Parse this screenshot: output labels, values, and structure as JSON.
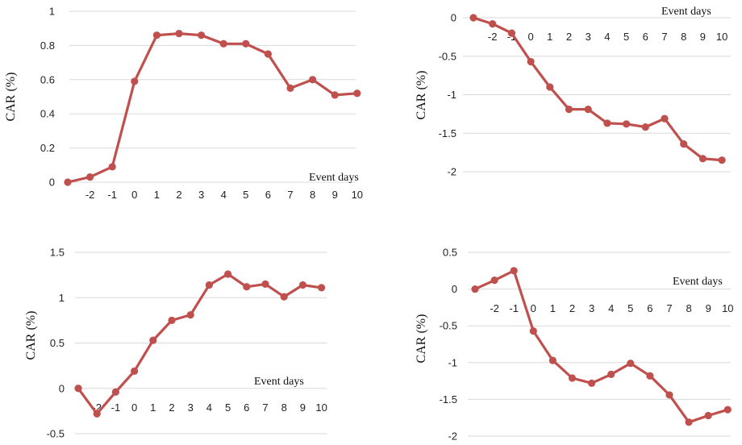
{
  "chart_data": [
    {
      "type": "line",
      "xlabel": "Event days",
      "ylabel": "CAR (%)",
      "categories": [
        "",
        "-2",
        "-1",
        "0",
        "1",
        "2",
        "3",
        "4",
        "5",
        "6",
        "7",
        "8",
        "9",
        "10"
      ],
      "ylim": [
        0,
        1
      ],
      "yticks": [
        "0",
        "0.2",
        "0.4",
        "0.6",
        "0.8",
        "1"
      ],
      "ytick_values": [
        0,
        0.2,
        0.4,
        0.6,
        0.8,
        1
      ],
      "grid": true,
      "series": [
        {
          "values": [
            0,
            0.03,
            0.09,
            0.59,
            0.86,
            0.87,
            0.86,
            0.81,
            0.81,
            0.75,
            0.55,
            0.6,
            0.51,
            0.52
          ],
          "color": "#c0504d"
        }
      ]
    },
    {
      "type": "line",
      "xlabel": "Event days",
      "ylabel": "CAR (%)",
      "categories": [
        "",
        "-2",
        "-1",
        "0",
        "1",
        "2",
        "3",
        "4",
        "5",
        "6",
        "7",
        "8",
        "9",
        "10"
      ],
      "ylim": [
        -2,
        0
      ],
      "yticks": [
        "0",
        "-0.5",
        "-1",
        "-1.5",
        "-2"
      ],
      "ytick_values": [
        0,
        -0.5,
        -1,
        -1.5,
        -2
      ],
      "grid": true,
      "series": [
        {
          "values": [
            0,
            -0.08,
            -0.2,
            -0.57,
            -0.9,
            -1.19,
            -1.19,
            -1.37,
            -1.38,
            -1.42,
            -1.31,
            -1.64,
            -1.83,
            -1.85
          ],
          "color": "#c0504d"
        }
      ]
    },
    {
      "type": "line",
      "xlabel": "Event days",
      "ylabel": "CAR (%)",
      "categories": [
        "",
        "-2",
        "-1",
        "0",
        "1",
        "2",
        "3",
        "4",
        "5",
        "6",
        "7",
        "8",
        "9",
        "10"
      ],
      "ylim": [
        -0.5,
        1.5
      ],
      "yticks": [
        "1.5",
        "1",
        "0.5",
        "0",
        "-0.5"
      ],
      "ytick_values": [
        1.5,
        1,
        0.5,
        0,
        -0.5
      ],
      "grid": true,
      "series": [
        {
          "values": [
            0,
            -0.28,
            -0.04,
            0.19,
            0.53,
            0.75,
            0.81,
            1.14,
            1.26,
            1.12,
            1.15,
            1.01,
            1.14,
            1.11
          ],
          "color": "#c0504d"
        }
      ]
    },
    {
      "type": "line",
      "xlabel": "Event days",
      "ylabel": "CAR (%)",
      "categories": [
        "",
        "-2",
        "-1",
        "0",
        "1",
        "2",
        "3",
        "4",
        "5",
        "6",
        "7",
        "8",
        "9",
        "10"
      ],
      "ylim": [
        -2,
        0.5
      ],
      "yticks": [
        "0.5",
        "0",
        "-0.5",
        "-1",
        "-1.5",
        "-2"
      ],
      "ytick_values": [
        0.5,
        0,
        -0.5,
        -1,
        -1.5,
        -2
      ],
      "grid": true,
      "series": [
        {
          "values": [
            0,
            0.12,
            0.25,
            -0.57,
            -0.97,
            -1.21,
            -1.28,
            -1.16,
            -1.01,
            -1.18,
            -1.44,
            -1.81,
            -1.72,
            -1.64
          ],
          "color": "#c0504d"
        }
      ]
    }
  ]
}
